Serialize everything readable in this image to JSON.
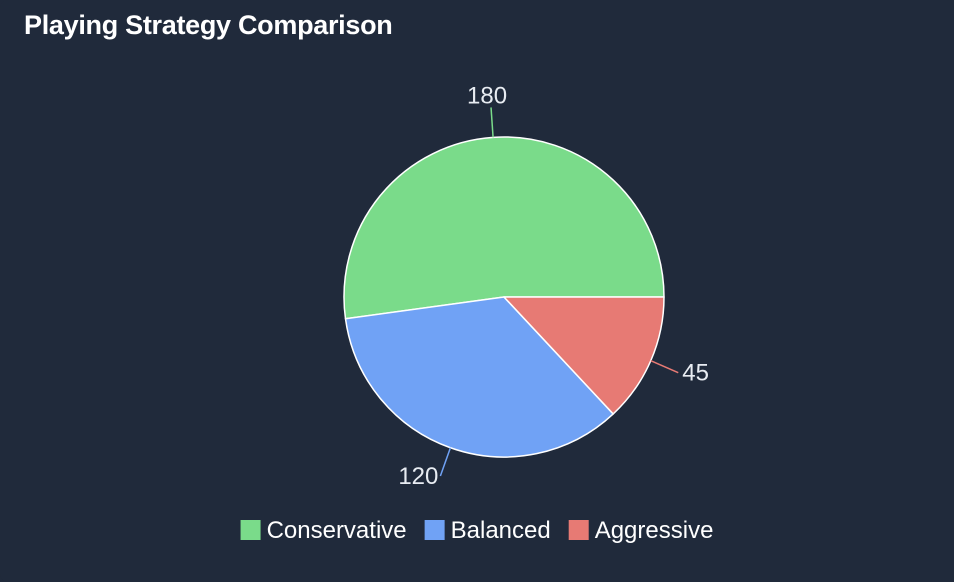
{
  "chart_data": {
    "type": "pie",
    "title": "Playing Strategy Comparison",
    "categories": [
      "Conservative",
      "Balanced",
      "Aggressive"
    ],
    "values": [
      180,
      120,
      45
    ],
    "colors": [
      "#7adb8a",
      "#70a2f5",
      "#e77a74"
    ],
    "legend": "bottom",
    "data_labels": true
  }
}
